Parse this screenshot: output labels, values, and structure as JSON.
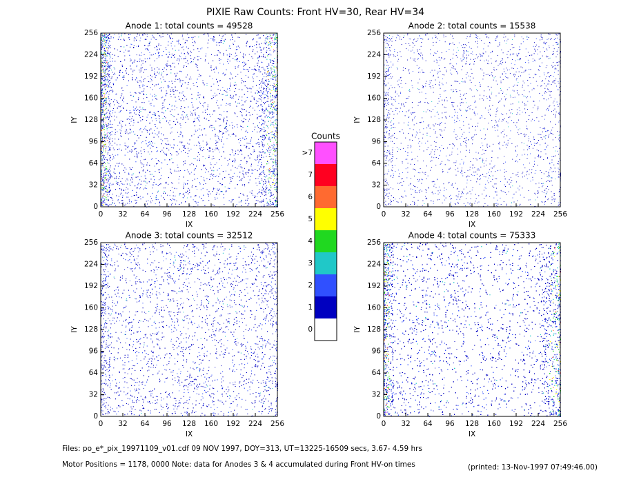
{
  "chart_data": {
    "type": "heatmap",
    "title": "PIXIE Raw Counts:  Front HV=30, Rear HV=34",
    "panels": [
      {
        "title": "Anode 1: total counts = 49528",
        "total": 49528,
        "xlabel": "IX",
        "ylabel": "IY",
        "xlim": [
          0,
          256
        ],
        "ylim": [
          0,
          256
        ],
        "xticks": [
          0,
          32,
          64,
          96,
          128,
          160,
          192,
          224,
          256
        ],
        "yticks": [
          0,
          32,
          64,
          96,
          128,
          160,
          192,
          224,
          256
        ]
      },
      {
        "title": "Anode 2: total counts = 15538",
        "total": 15538,
        "xlabel": "IX",
        "ylabel": "IY",
        "xlim": [
          0,
          256
        ],
        "ylim": [
          0,
          256
        ],
        "xticks": [
          0,
          32,
          64,
          96,
          128,
          160,
          192,
          224,
          256
        ],
        "yticks": [
          0,
          32,
          64,
          96,
          128,
          160,
          192,
          224,
          256
        ]
      },
      {
        "title": "Anode 3: total counts = 32512",
        "total": 32512,
        "xlabel": "IX",
        "ylabel": "IY",
        "xlim": [
          0,
          256
        ],
        "ylim": [
          0,
          256
        ],
        "xticks": [
          0,
          32,
          64,
          96,
          128,
          160,
          192,
          224,
          256
        ],
        "yticks": [
          0,
          32,
          64,
          96,
          128,
          160,
          192,
          224,
          256
        ]
      },
      {
        "title": "Anode 4: total counts = 75333",
        "total": 75333,
        "xlabel": "IX",
        "ylabel": "IY",
        "xlim": [
          0,
          256
        ],
        "ylim": [
          0,
          256
        ],
        "xticks": [
          0,
          32,
          64,
          96,
          128,
          160,
          192,
          224,
          256
        ],
        "yticks": [
          0,
          32,
          64,
          96,
          128,
          160,
          192,
          224,
          256
        ]
      }
    ],
    "colorbar": {
      "title": "Counts",
      "levels": [
        "0",
        "1",
        "2",
        "3",
        "4",
        "5",
        "6",
        "7",
        ">7"
      ],
      "colors": [
        "#ffffff",
        "#0000c0",
        "#3050ff",
        "#20c8c8",
        "#20d820",
        "#ffff00",
        "#ff6a30",
        "#ff0020",
        "#ff50ff"
      ]
    },
    "footer": [
      "Files: po_e*_pix_19971109_v01.cdf    09 NOV 1997, DOY=313, UT=13225-16509 secs,  3.67- 4.59 hrs",
      "Motor Positions = 1178, 0000    Note: data for Anodes 3 & 4 accumulated during Front HV-on times"
    ],
    "printed": "(printed: 13-Nov-1997 07:49:46.00)"
  }
}
